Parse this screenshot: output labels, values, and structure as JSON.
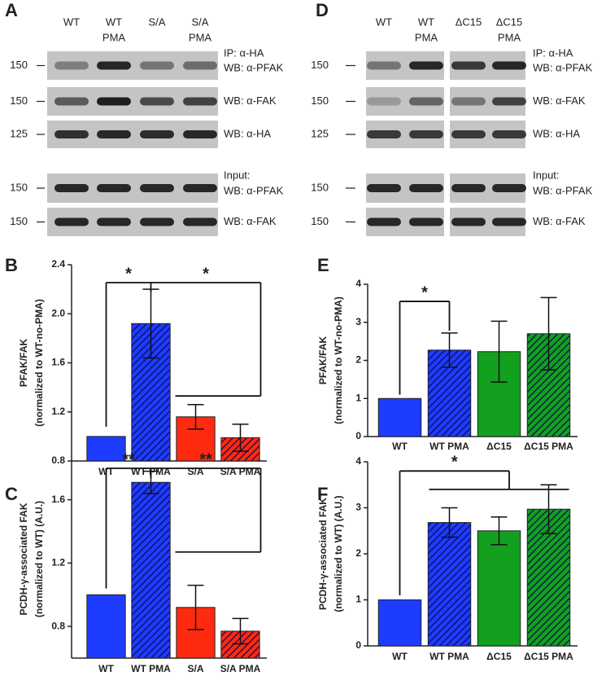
{
  "blots": [
    {
      "panel": "A",
      "lanes": [
        [
          "WT"
        ],
        [
          "WT",
          "PMA"
        ],
        [
          "S/A"
        ],
        [
          "S/A",
          "PMA"
        ]
      ],
      "rows": [
        {
          "marker": "150",
          "labels": [
            "IP: α-HA",
            "WB: α-PFAK"
          ]
        },
        {
          "marker": "150",
          "labels": [
            "WB: α-FAK"
          ]
        },
        {
          "marker": "125",
          "labels": [
            "WB: α-HA"
          ]
        },
        {
          "marker": "150",
          "labels": [
            "Input:",
            "WB: α-PFAK"
          ]
        },
        {
          "marker": "150",
          "labels": [
            "WB: α-FAK"
          ]
        }
      ]
    },
    {
      "panel": "D",
      "lanes": [
        [
          "WT"
        ],
        [
          "WT",
          "PMA"
        ],
        [
          "ΔC15"
        ],
        [
          "ΔC15",
          "PMA"
        ]
      ],
      "rows": [
        {
          "marker": "150",
          "labels": [
            "IP: α-HA",
            "WB: α-PFAK"
          ]
        },
        {
          "marker": "150",
          "labels": [
            "WB: α-FAK"
          ]
        },
        {
          "marker": "125",
          "labels": [
            "WB: α-HA"
          ]
        },
        {
          "marker": "150",
          "labels": [
            "Input:",
            "WB: α-PFAK"
          ]
        },
        {
          "marker": "150",
          "labels": [
            "WB: α-FAK"
          ]
        }
      ]
    }
  ],
  "chart_data": [
    {
      "type": "bar",
      "panel": "B",
      "ylabel": [
        "PFAK/FAK",
        "(normalized to WT-no-PMA)"
      ],
      "categories": [
        "WT",
        "WT PMA",
        "S/A",
        "S/A PMA"
      ],
      "values": [
        1.0,
        1.92,
        1.16,
        0.99
      ],
      "errors": [
        null,
        0.28,
        0.1,
        0.11
      ],
      "colors": [
        "#1e3cff",
        "#1e3cff",
        "#ff2a10",
        "#ff2a10"
      ],
      "hatched": [
        false,
        true,
        false,
        true
      ],
      "ylim": [
        0.8,
        2.4
      ],
      "yticks": [
        0.8,
        1.2,
        1.6,
        {
          "value": 2,
          "label": "2.0"
        },
        2.4
      ],
      "significance": [
        "*",
        "*"
      ]
    },
    {
      "type": "bar",
      "panel": "C",
      "ylabel": [
        "PCDH-γ-associated FAK",
        "(normalized to WT) (A.U.)"
      ],
      "categories": [
        "WT",
        "WT PMA",
        "S/A",
        "S/A PMA"
      ],
      "values": [
        1.0,
        1.71,
        0.92,
        0.77
      ],
      "errors": [
        null,
        0.07,
        0.14,
        0.08
      ],
      "colors": [
        "#1e3cff",
        "#1e3cff",
        "#ff2a10",
        "#ff2a10"
      ],
      "hatched": [
        false,
        true,
        false,
        true
      ],
      "ylim": [
        0.6,
        1.85
      ],
      "yticks": [
        0.8,
        1.2,
        1.6
      ],
      "significance": [
        "**",
        "**"
      ]
    },
    {
      "type": "bar",
      "panel": "E",
      "ylabel": [
        "PFAK/FAK",
        "(normalized to WT-no-PMA)"
      ],
      "categories": [
        "WT",
        "WT PMA",
        "ΔC15",
        "ΔC15 PMA"
      ],
      "values": [
        1.0,
        2.27,
        2.23,
        2.7
      ],
      "errors": [
        null,
        0.45,
        0.8,
        0.95
      ],
      "colors": [
        "#1e3cff",
        "#1e3cff",
        "#12a01e",
        "#12a01e"
      ],
      "hatched": [
        false,
        true,
        false,
        true
      ],
      "ylim": [
        0,
        4
      ],
      "yticks": [
        0,
        1,
        2,
        3,
        4
      ],
      "significance": [
        "*"
      ]
    },
    {
      "type": "bar",
      "panel": "F",
      "ylabel": [
        "PCDH-γ-associated FAK",
        "(normalized to WT) (A.U.)"
      ],
      "categories": [
        "WT",
        "WT PMA",
        "ΔC15",
        "ΔC15 PMA"
      ],
      "values": [
        1.0,
        2.68,
        2.5,
        2.97
      ],
      "errors": [
        null,
        0.32,
        0.3,
        0.53
      ],
      "colors": [
        "#1e3cff",
        "#1e3cff",
        "#12a01e",
        "#12a01e"
      ],
      "hatched": [
        false,
        true,
        false,
        true
      ],
      "ylim": [
        0,
        4
      ],
      "yticks": [
        0,
        1,
        2,
        3,
        4
      ],
      "significance": [
        "*"
      ]
    }
  ]
}
